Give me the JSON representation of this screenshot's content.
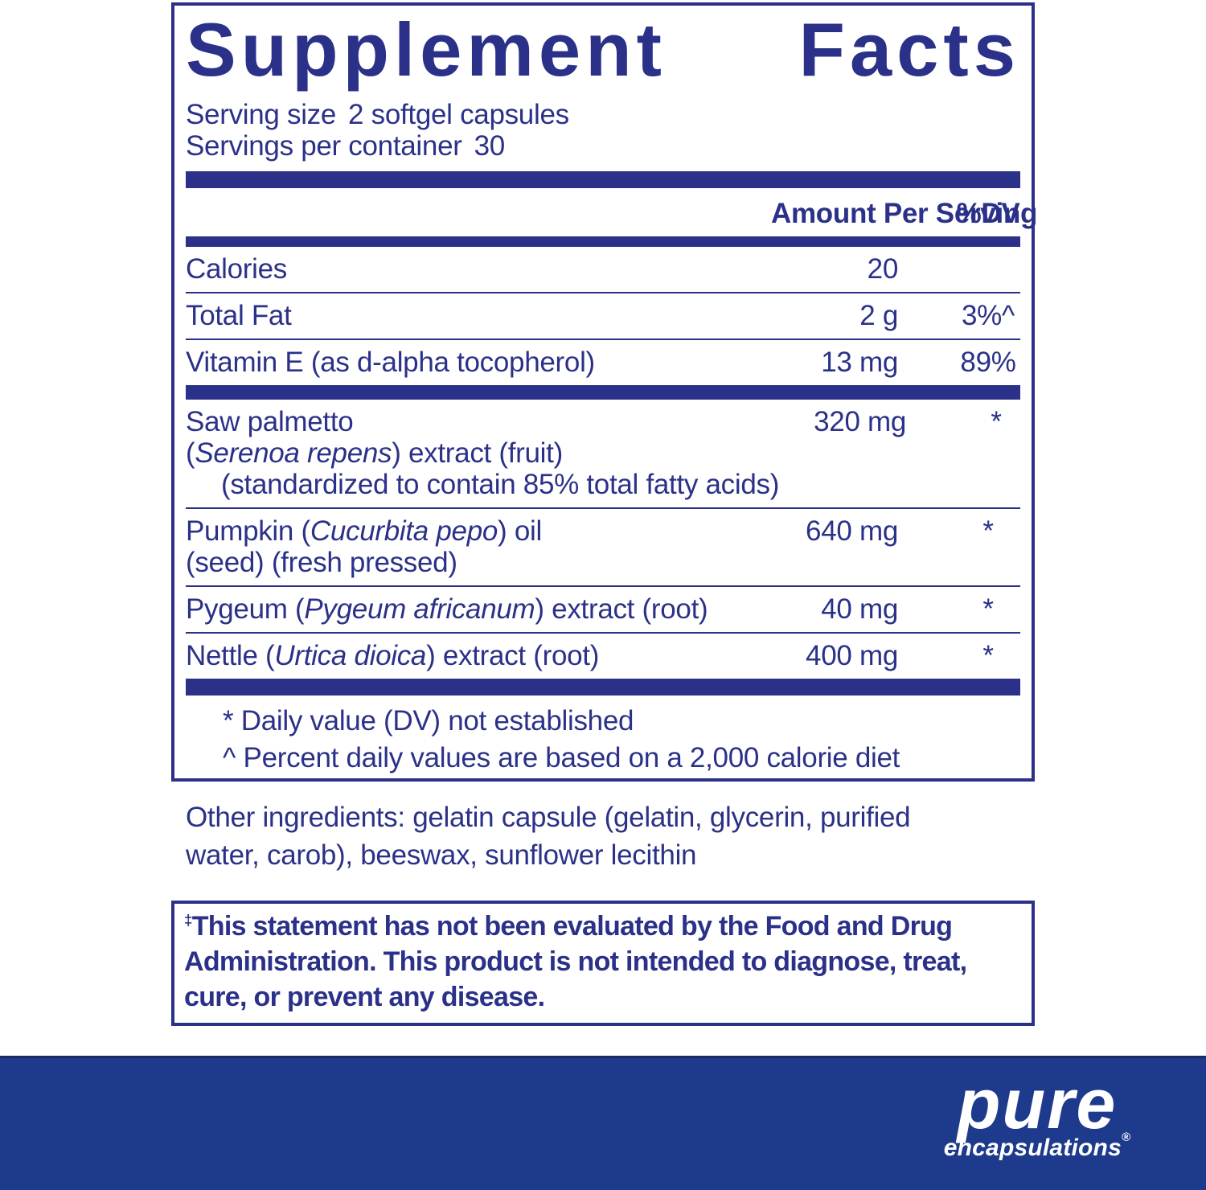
{
  "colors": {
    "navy": "#2b3188",
    "band_blue": "#1e3a8c",
    "logo_text": "#ffffff"
  },
  "label": {
    "title_left": "Supplement",
    "title_right": "Facts",
    "serving_size": {
      "label": "Serving size",
      "value": "2 softgel capsules"
    },
    "servings_per_container": {
      "label": "Servings per container",
      "value": "30"
    },
    "columns": {
      "amount": "Amount Per Serving",
      "dv": "%DV"
    },
    "rows": [
      {
        "name_lines": [
          {
            "segs": [
              {
                "t": "Calories"
              }
            ]
          }
        ],
        "amount": "20",
        "dv": ""
      },
      {
        "name_lines": [
          {
            "segs": [
              {
                "t": "Total Fat"
              }
            ]
          }
        ],
        "amount": "2 g",
        "dv": "3%^"
      },
      {
        "name_lines": [
          {
            "segs": [
              {
                "t": "Vitamin E (as d-alpha tocopherol)"
              }
            ]
          }
        ],
        "amount": "13 mg",
        "dv": "89%"
      },
      {
        "bar_before": true,
        "name_lines": [
          {
            "segs": [
              {
                "t": "Saw palmetto"
              }
            ]
          },
          {
            "segs": [
              {
                "t": "("
              },
              {
                "t": "Serenoa repens",
                "i": true
              },
              {
                "t": ") extract (fruit)"
              }
            ]
          },
          {
            "indent": true,
            "segs": [
              {
                "t": "(standardized to contain 85% total fatty acids)"
              }
            ]
          }
        ],
        "amount": "320 mg",
        "dv": "*"
      },
      {
        "name_lines": [
          {
            "segs": [
              {
                "t": "Pumpkin ("
              },
              {
                "t": "Cucurbita pepo",
                "i": true
              },
              {
                "t": ") oil"
              }
            ]
          },
          {
            "segs": [
              {
                "t": "(seed) (fresh pressed)"
              }
            ]
          }
        ],
        "amount": "640 mg",
        "dv": "*"
      },
      {
        "name_lines": [
          {
            "segs": [
              {
                "t": "Pygeum ("
              },
              {
                "t": "Pygeum africanum",
                "i": true
              },
              {
                "t": ") extract (root)"
              }
            ]
          }
        ],
        "amount": "40 mg",
        "dv": "*"
      },
      {
        "name_lines": [
          {
            "segs": [
              {
                "t": "Nettle ("
              },
              {
                "t": "Urtica dioica",
                "i": true
              },
              {
                "t": ") extract (root)"
              }
            ]
          }
        ],
        "amount": "400 mg",
        "dv": "*"
      }
    ],
    "footnotes": [
      "* Daily value (DV) not established",
      "^ Percent daily values are based on a 2,000 calorie diet"
    ]
  },
  "other_ingredients": {
    "lines": [
      "Other ingredients: gelatin capsule (gelatin, glycerin, purified",
      "water, carob), beeswax, sunflower lecithin"
    ]
  },
  "fda": {
    "dagger": "‡",
    "lines": [
      "This statement has not been evaluated by the Food and Drug",
      "Administration. This product is not intended to diagnose, treat,",
      "cure, or prevent any disease."
    ]
  },
  "brand": {
    "name": "pure",
    "sub": "encapsulations",
    "registered": "®"
  }
}
